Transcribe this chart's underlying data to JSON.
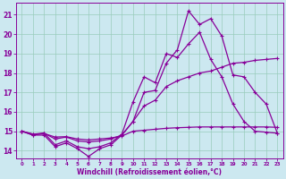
{
  "xlabel": "Windchill (Refroidissement éolien,°C)",
  "background_color": "#cce8f0",
  "grid_color": "#99ccbb",
  "line_color": "#880099",
  "x_ticks": [
    0,
    1,
    2,
    3,
    4,
    5,
    6,
    7,
    8,
    9,
    10,
    11,
    12,
    13,
    14,
    15,
    16,
    17,
    18,
    19,
    20,
    21,
    22,
    23
  ],
  "ylim": [
    13.6,
    21.6
  ],
  "xlim": [
    -0.5,
    23.5
  ],
  "y_ticks": [
    14,
    15,
    16,
    17,
    18,
    19,
    20,
    21
  ],
  "series1": [
    15.0,
    14.8,
    14.8,
    14.2,
    14.4,
    14.1,
    13.7,
    14.1,
    14.3,
    14.8,
    15.5,
    17.0,
    17.1,
    18.5,
    19.2,
    21.2,
    20.5,
    20.8,
    19.9,
    17.9,
    17.8,
    17.0,
    16.4,
    14.9
  ],
  "series2": [
    15.0,
    14.8,
    14.9,
    14.3,
    14.5,
    14.2,
    14.1,
    14.2,
    14.4,
    14.85,
    16.5,
    17.8,
    17.5,
    19.0,
    18.8,
    19.5,
    20.1,
    18.7,
    17.8,
    16.4,
    15.5,
    15.0,
    14.95,
    14.9
  ],
  "series3": [
    15.0,
    14.85,
    14.9,
    14.6,
    14.7,
    14.5,
    14.45,
    14.5,
    14.6,
    14.8,
    15.5,
    16.3,
    16.6,
    17.3,
    17.6,
    17.8,
    18.0,
    18.1,
    18.3,
    18.5,
    18.55,
    18.65,
    18.7,
    18.75
  ],
  "series4": [
    15.0,
    14.85,
    14.88,
    14.7,
    14.72,
    14.6,
    14.55,
    14.6,
    14.65,
    14.75,
    15.0,
    15.05,
    15.1,
    15.15,
    15.18,
    15.2,
    15.22,
    15.22,
    15.22,
    15.22,
    15.22,
    15.22,
    15.22,
    15.2
  ]
}
